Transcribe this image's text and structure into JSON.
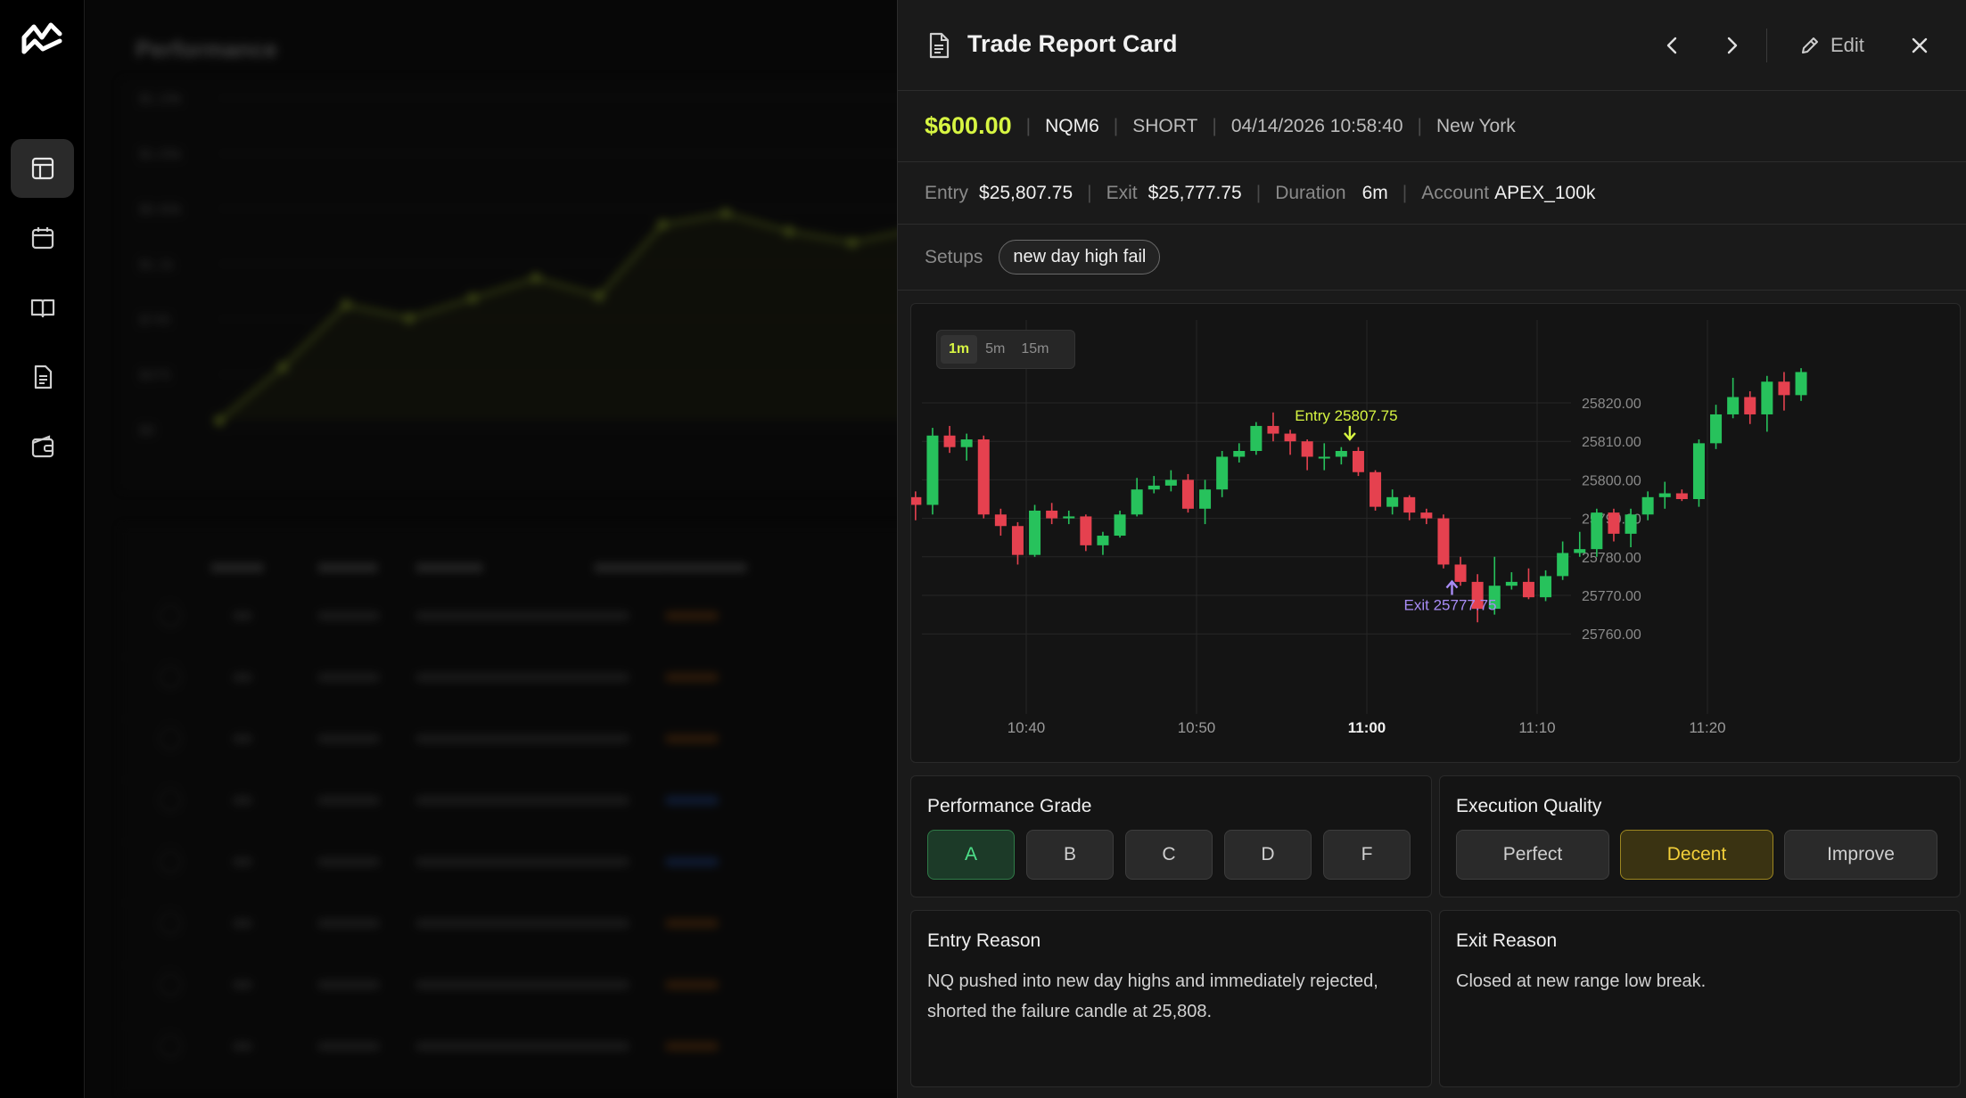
{
  "background": {
    "title": "Performance",
    "chart_y_labels": [
      "$1.20k",
      "$1.05k",
      "$0.90k",
      "$1.1k",
      "$745",
      "$375",
      "$0"
    ],
    "chart_points": [
      0,
      0.24,
      0.52,
      0.46,
      0.55,
      0.64,
      0.56,
      0.88,
      0.93,
      0.85,
      0.8,
      0.86
    ],
    "table_headers": [
      "Trade",
      "Account",
      "Date & Time",
      "Symbol",
      "Session"
    ],
    "table_rows": 8
  },
  "panel": {
    "title": "Trade Report Card",
    "edit_label": "Edit",
    "pnl": "$600.00",
    "symbol": "NQM6",
    "side": "SHORT",
    "datetime": "04/14/2026 10:58:40",
    "session": "New York",
    "entry_label": "Entry",
    "entry_value": "$25,807.75",
    "exit_label": "Exit",
    "exit_value": "$25,777.75",
    "duration_label": "Duration",
    "duration_value": "6m",
    "account_label": "Account",
    "account_value": "APEX_100k",
    "setups_label": "Setups",
    "setup_tag": "new day high fail"
  },
  "timeframes": [
    {
      "label": "1m",
      "active": true
    },
    {
      "label": "5m",
      "active": false
    },
    {
      "label": "15m",
      "active": false
    }
  ],
  "chart_data": {
    "type": "candlestick",
    "y_ticks": [
      25760,
      25770,
      25780,
      25790,
      25800,
      25810,
      25820
    ],
    "y_tick_labels": [
      "25760.00",
      "25770.00",
      "25780.00",
      "25790.00",
      "25800.00",
      "25810.00",
      "25820.00"
    ],
    "x_ticks": [
      "10:40",
      "10:50",
      "11:00",
      "11:10",
      "11:20"
    ],
    "x_tick_minutes": [
      40,
      50,
      60,
      70,
      80
    ],
    "first_minute": 31.5,
    "entry_label": "Entry 25807.75",
    "exit_label": "Exit 25777.75",
    "entry_price": 25807.75,
    "exit_price": 25777.75,
    "candles": [
      [
        25801.5,
        25797.5,
        25803.5,
        25795.5
      ],
      [
        25797.5,
        25795.5,
        25799.0,
        25793.5
      ],
      [
        25795.5,
        25793.5,
        25797.0,
        25789.5
      ],
      [
        25793.5,
        25811.5,
        25813.5,
        25791.0
      ],
      [
        25811.5,
        25808.5,
        25814.0,
        25807.0
      ],
      [
        25808.5,
        25810.5,
        25812.0,
        25805.0
      ],
      [
        25810.5,
        25791.0,
        25811.5,
        25790.0
      ],
      [
        25791.0,
        25788.0,
        25792.5,
        25785.5
      ],
      [
        25788.0,
        25780.5,
        25789.0,
        25778.0
      ],
      [
        25780.5,
        25792.0,
        25793.5,
        25780.0
      ],
      [
        25792.0,
        25790.0,
        25794.0,
        25788.5
      ],
      [
        25790.0,
        25790.5,
        25792.0,
        25788.5
      ],
      [
        25790.5,
        25783.0,
        25791.0,
        25781.5
      ],
      [
        25783.0,
        25785.5,
        25786.5,
        25780.5
      ],
      [
        25785.5,
        25791.0,
        25792.0,
        25785.0
      ],
      [
        25791.0,
        25797.5,
        25800.5,
        25790.5
      ],
      [
        25797.5,
        25798.5,
        25801.0,
        25796.5
      ],
      [
        25798.5,
        25800.0,
        25802.5,
        25797.0
      ],
      [
        25800.0,
        25792.5,
        25801.5,
        25791.5
      ],
      [
        25792.5,
        25797.5,
        25800.0,
        25788.5
      ],
      [
        25797.5,
        25806.0,
        25807.5,
        25795.5
      ],
      [
        25806.0,
        25807.5,
        25809.5,
        25804.5
      ],
      [
        25807.5,
        25814.0,
        25815.0,
        25806.5
      ],
      [
        25814.0,
        25812.0,
        25817.5,
        25810.0
      ],
      [
        25812.0,
        25810.0,
        25813.0,
        25806.5
      ],
      [
        25810.0,
        25806.0,
        25810.5,
        25802.5
      ],
      [
        25806.0,
        25806.0,
        25809.5,
        25802.5
      ],
      [
        25806.0,
        25807.5,
        25808.5,
        25804.0
      ],
      [
        25807.5,
        25802.0,
        25808.5,
        25801.0
      ],
      [
        25802.0,
        25793.0,
        25802.5,
        25792.0
      ],
      [
        25793.0,
        25795.5,
        25797.5,
        25791.0
      ],
      [
        25795.5,
        25791.5,
        25796.0,
        25789.5
      ],
      [
        25791.5,
        25790.0,
        25792.5,
        25788.5
      ],
      [
        25790.0,
        25778.0,
        25791.0,
        25777.0
      ],
      [
        25778.0,
        25773.5,
        25780.0,
        25772.5
      ],
      [
        25773.5,
        25766.5,
        25775.5,
        25763.0
      ],
      [
        25766.5,
        25772.5,
        25780.0,
        25765.0
      ],
      [
        25772.5,
        25773.5,
        25776.0,
        25771.5
      ],
      [
        25773.5,
        25769.5,
        25777.0,
        25769.0
      ],
      [
        25769.5,
        25775.0,
        25776.5,
        25768.5
      ],
      [
        25775.0,
        25781.0,
        25784.0,
        25774.0
      ],
      [
        25781.0,
        25782.0,
        25786.5,
        25780.0
      ],
      [
        25782.0,
        25791.5,
        25792.5,
        25780.0
      ],
      [
        25791.5,
        25786.0,
        25792.5,
        25784.0
      ],
      [
        25786.0,
        25791.0,
        25792.5,
        25782.5
      ],
      [
        25791.0,
        25795.5,
        25797.0,
        25789.5
      ],
      [
        25795.5,
        25796.5,
        25799.5,
        25792.5
      ],
      [
        25796.5,
        25795.0,
        25797.5,
        25794.5
      ],
      [
        25795.0,
        25809.5,
        25810.5,
        25793.0
      ],
      [
        25809.5,
        25817.0,
        25819.5,
        25808.0
      ],
      [
        25817.0,
        25821.5,
        25826.5,
        25816.0
      ],
      [
        25821.5,
        25817.0,
        25823.0,
        25814.5
      ],
      [
        25817.0,
        25825.5,
        25827.0,
        25812.5
      ],
      [
        25825.5,
        25822.0,
        25828.0,
        25818.0
      ],
      [
        25822.0,
        25828.0,
        25829.0,
        25820.5
      ]
    ]
  },
  "performance_grade": {
    "title": "Performance Grade",
    "options": [
      "A",
      "B",
      "C",
      "D",
      "F"
    ],
    "selected": "A"
  },
  "execution_quality": {
    "title": "Execution Quality",
    "options": [
      "Perfect",
      "Decent",
      "Improve"
    ],
    "selected": "Decent"
  },
  "entry_reason": {
    "title": "Entry Reason",
    "text": "NQ pushed into new day highs and immediately rejected, shorted the failure candle at 25,808."
  },
  "exit_reason": {
    "title": "Exit Reason",
    "text": "Closed at new range low break."
  },
  "colors": {
    "accent": "#d7f542",
    "up": "#27c25c",
    "down": "#e5414f",
    "exit_marker": "#a88cf5"
  }
}
